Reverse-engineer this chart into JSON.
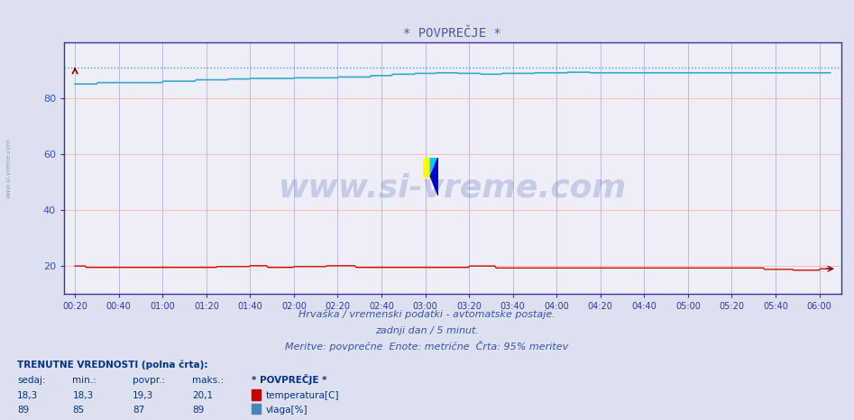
{
  "title": "* POVPREČJE *",
  "bg_color": "#dde0ee",
  "plot_bg_color": "#eeeef8",
  "grid_color_h": "#ffbbbb",
  "grid_color_v": "#bbbbdd",
  "title_color": "#555599",
  "axis_color": "#3333aa",
  "text_color": "#3355aa",
  "xlabel_ticks": [
    "00:20",
    "00:40",
    "01:00",
    "01:20",
    "01:40",
    "02:00",
    "02:20",
    "02:40",
    "03:00",
    "03:20",
    "03:40",
    "04:00",
    "04:20",
    "04:40",
    "05:00",
    "05:20",
    "05:40",
    "06:00"
  ],
  "ylim": [
    10,
    100
  ],
  "yticks": [
    20,
    40,
    60,
    80
  ],
  "subtitle1": "Hrvaška / vremenski podatki - avtomatske postaje.",
  "subtitle2": "zadnji dan / 5 minut.",
  "subtitle3": "Meritve: povprečne  Enote: metrične  Črta: 95% meritev",
  "footer_header": "TRENUTNE VREDNOSTI (polna črta):",
  "col_sedaj": "sedaj:",
  "col_min": "min.:",
  "col_povpr": "povpr.:",
  "col_maks": "maks.:",
  "col_star": "* POVPREČJE *",
  "row1_sedaj": "18,3",
  "row1_min": "18,3",
  "row1_povpr": "19,3",
  "row1_maks": "20,1",
  "row1_label": "temperatura[C]",
  "row1_color": "#cc0000",
  "row2_sedaj": "89",
  "row2_min": "85",
  "row2_povpr": "87",
  "row2_maks": "89",
  "row2_label": "vlaga[%]",
  "row2_color": "#4488bb",
  "watermark": "www.si-vreme.com",
  "dotted_color": "#33aacc",
  "hum_color": "#33aacc",
  "temp_color": "#cc1100"
}
